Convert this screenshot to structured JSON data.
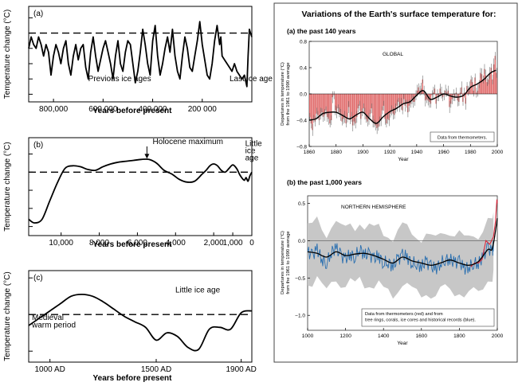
{
  "figure": {
    "left_panels": {
      "y_label": "Temperature change (°C)",
      "x_label": "Years before present"
    },
    "right": {
      "title": "Variations of the Earth's surface temperature for:",
      "y_label_line1": "Departures in temperature (°C)",
      "y_label_line2": "from the 1961 to 1990 average",
      "x_label": "Year"
    }
  },
  "chart_data": [
    {
      "id": "a",
      "type": "line",
      "panel_label": "(a)",
      "x_label": "Years before present",
      "y_label": "Temperature change (°C)",
      "x_axis": "reversed",
      "x_range": [
        900000,
        0
      ],
      "x_ticks": [
        {
          "v": 800000,
          "label": "800,000"
        },
        {
          "v": 600000,
          "label": "600,000"
        },
        {
          "v": 400000,
          "label": "400 000"
        },
        {
          "v": 200000,
          "label": "200 000"
        }
      ],
      "y_range": [
        -9,
        3.5
      ],
      "y_tick_marks": [
        -8,
        -6,
        -4,
        -2,
        0,
        2
      ],
      "reference_line": 0,
      "annotations": [
        {
          "text": "Previous ice ages",
          "x": 660000,
          "y": -6.3
        },
        {
          "text": "Last ice age",
          "x": 90000,
          "y": -6.3
        }
      ],
      "x": [
        900000,
        890000,
        880000,
        870000,
        860000,
        850000,
        840000,
        830000,
        820000,
        810000,
        800000,
        790000,
        780000,
        770000,
        760000,
        750000,
        740000,
        730000,
        720000,
        710000,
        700000,
        690000,
        680000,
        670000,
        660000,
        650000,
        640000,
        630000,
        620000,
        610000,
        600000,
        590000,
        580000,
        570000,
        560000,
        550000,
        540000,
        530000,
        520000,
        510000,
        500000,
        490000,
        480000,
        470000,
        460000,
        450000,
        440000,
        430000,
        420000,
        410000,
        400000,
        390000,
        380000,
        370000,
        360000,
        350000,
        340000,
        330000,
        320000,
        310000,
        300000,
        290000,
        280000,
        270000,
        260000,
        250000,
        240000,
        230000,
        220000,
        210000,
        200000,
        190000,
        180000,
        170000,
        160000,
        150000,
        140000,
        130000,
        125000,
        120000,
        110000,
        100000,
        90000,
        80000,
        70000,
        60000,
        50000,
        40000,
        30000,
        20000,
        15000,
        10000,
        5000,
        0
      ],
      "y": [
        -2,
        -0.5,
        -1.5,
        -2,
        -0.5,
        -1.5,
        -3,
        -1.5,
        -2.5,
        -5.5,
        -3,
        -1.5,
        -2.5,
        -4,
        -2,
        -1,
        -4,
        -5.5,
        -3,
        -1.5,
        -3.5,
        -2,
        -1.5,
        -4.5,
        -6,
        -2.5,
        -0.5,
        -3,
        -5,
        -3.5,
        -2,
        -1,
        -2.5,
        -4,
        -6,
        -3,
        -1,
        -4,
        -5,
        -2.5,
        -1,
        -1.5,
        -4,
        -6.5,
        -5,
        -2.5,
        0.5,
        -1.5,
        -4,
        -5.5,
        -1,
        1,
        -3,
        -5.5,
        -4,
        -2,
        -0.5,
        -2.5,
        0.5,
        -3,
        -5,
        -6,
        -3,
        -0.5,
        -2,
        -4.5,
        -5,
        -3,
        -1,
        1.5,
        -1.5,
        -3.5,
        -5.5,
        -6,
        -4,
        -1,
        1,
        -1.5,
        -0.5,
        -3,
        -3.5,
        -4,
        -4.5,
        -5,
        -4,
        -5,
        -5.5,
        -6,
        -5.5,
        -7,
        -3,
        0.5,
        0,
        -0.5
      ]
    },
    {
      "id": "b",
      "type": "line",
      "panel_label": "(b)",
      "x_label": "Years before present",
      "y_label": "Temperature change (°C)",
      "x_axis": "reversed",
      "x_range": [
        11700,
        0
      ],
      "x_ticks": [
        {
          "v": 10000,
          "label": "10,000"
        },
        {
          "v": 8000,
          "label": "8,000"
        },
        {
          "v": 6000,
          "label": "6,000"
        },
        {
          "v": 4000,
          "label": "4,000"
        },
        {
          "v": 2000,
          "label": "2,000"
        },
        {
          "v": 1000,
          "label": "1,000"
        },
        {
          "v": 0,
          "label": "0"
        }
      ],
      "y_range": [
        -3.5,
        1.9
      ],
      "y_tick_marks": [
        -3,
        -2,
        -1,
        0,
        1
      ],
      "reference_line": 0,
      "annotations": [
        {
          "text": "Holocene maximum",
          "x": 5200,
          "y": 1.55,
          "arrow_to_x": 5500,
          "arrow_to_y": 0.7
        },
        {
          "text": "Little",
          "x": 350,
          "y": 1.45
        },
        {
          "text": "ice",
          "x": 350,
          "y": 1.05
        },
        {
          "text": "age",
          "x": 350,
          "y": 0.65
        }
      ],
      "x": [
        11700,
        11400,
        11000,
        10600,
        10200,
        9800,
        9400,
        9000,
        8600,
        8200,
        7800,
        7400,
        7000,
        6600,
        6200,
        5800,
        5400,
        5000,
        4600,
        4200,
        3800,
        3400,
        3000,
        2600,
        2400,
        2200,
        2000,
        1800,
        1600,
        1400,
        1200,
        1000,
        800,
        600,
        400,
        300,
        200,
        100,
        0
      ],
      "y": [
        -2.6,
        -2.8,
        -2.6,
        -1.6,
        -0.6,
        0.2,
        0.35,
        0.3,
        0.15,
        0.1,
        0.3,
        0.45,
        0.55,
        0.6,
        0.65,
        0.7,
        0.7,
        0.5,
        0.1,
        -0.1,
        -0.4,
        -0.55,
        -0.5,
        -0.1,
        0.1,
        0.35,
        0.45,
        0.35,
        0.1,
        0.0,
        0.2,
        0.4,
        0.2,
        -0.2,
        -0.45,
        -0.3,
        -0.5,
        -0.2,
        0.0
      ]
    },
    {
      "id": "c",
      "type": "line",
      "panel_label": "(c)",
      "x_label": "Years before present",
      "y_label": "Temperature change (°C)",
      "x_range": [
        900,
        1950
      ],
      "x_ticks": [
        {
          "v": 1000,
          "label": "1000 AD"
        },
        {
          "v": 1500,
          "label": "1500 AD"
        },
        {
          "v": 1900,
          "label": "1900 AD"
        }
      ],
      "y_range": [
        -1.3,
        1.2
      ],
      "y_tick_marks": [
        -1,
        0,
        1
      ],
      "reference_line": 0,
      "annotations": [
        {
          "text": "Little ice age",
          "x": 1590,
          "y": 0.6
        },
        {
          "text": "Medieval",
          "x": 915,
          "y": -0.15
        },
        {
          "text": "warm period",
          "x": 915,
          "y": -0.35
        }
      ],
      "x": [
        900,
        950,
        1000,
        1050,
        1100,
        1150,
        1200,
        1250,
        1300,
        1350,
        1400,
        1450,
        1500,
        1550,
        1600,
        1650,
        1700,
        1750,
        1800,
        1850,
        1900,
        1950
      ],
      "y": [
        -0.3,
        -0.1,
        0.1,
        0.3,
        0.5,
        0.55,
        0.5,
        0.35,
        0.15,
        -0.05,
        -0.2,
        -0.35,
        -0.7,
        -0.5,
        -0.6,
        -0.9,
        -0.95,
        -0.4,
        -0.35,
        -0.4,
        0.05,
        0.1
      ]
    },
    {
      "id": "global-140",
      "type": "bar",
      "panel_label": "(a) the past 140 years",
      "inset_label": "GLOBAL",
      "legend_note": "Data from thermometers.",
      "x_label": "Year",
      "y_label": "Departures in temperature (°C) from the 1961 to 1990 average",
      "x_range": [
        1860,
        2000
      ],
      "x_ticks": [
        1860,
        1880,
        1900,
        1920,
        1940,
        1960,
        1980,
        2000
      ],
      "y_range": [
        -0.8,
        0.8
      ],
      "y_ticks": [
        -0.8,
        -0.4,
        0.0,
        0.4,
        0.8
      ],
      "y_tick_labels": [
        "−0.8",
        "−0.4",
        "0.0",
        "0.4",
        "0.8"
      ],
      "colors": {
        "bars": "#e06a6a",
        "smooth": "#000000",
        "error_bars": "#555555"
      },
      "series": [
        {
          "values": [
            -0.35,
            -0.45,
            -0.55,
            -0.38,
            -0.42,
            -0.3,
            -0.32,
            -0.4,
            -0.3,
            -0.28,
            -0.35,
            -0.32,
            -0.25,
            -0.35,
            -0.38,
            -0.45,
            -0.4,
            -0.05,
            -0.02,
            -0.25,
            -0.28,
            -0.22,
            -0.28,
            -0.32,
            -0.42,
            -0.38,
            -0.35,
            -0.45,
            -0.36,
            -0.2,
            -0.4,
            -0.35,
            -0.48,
            -0.42,
            -0.45,
            -0.35,
            -0.22,
            -0.18,
            -0.38,
            -0.28,
            -0.22,
            -0.3,
            -0.38,
            -0.42,
            -0.38,
            -0.3,
            -0.22,
            -0.42,
            -0.45,
            -0.48,
            -0.52,
            -0.5,
            -0.42,
            -0.4,
            -0.25,
            -0.18,
            -0.38,
            -0.45,
            -0.38,
            -0.4,
            -0.3,
            -0.25,
            -0.3,
            -0.32,
            -0.22,
            -0.18,
            -0.12,
            -0.2,
            -0.15,
            -0.25,
            -0.08,
            -0.18,
            -0.15,
            -0.28,
            -0.18,
            -0.15,
            -0.08,
            -0.12,
            -0.12,
            -0.02,
            0.05,
            0.1,
            0.05,
            0.08,
            0.22,
            0.05,
            -0.1,
            -0.08,
            -0.1,
            -0.12,
            -0.15,
            -0.02,
            0.02,
            0.08,
            -0.15,
            -0.02,
            -0.05,
            0.08,
            0.02,
            -0.05,
            -0.02,
            0.05,
            0.02,
            0.05,
            -0.2,
            -0.15,
            -0.08,
            -0.02,
            -0.05,
            0.02,
            -0.1,
            -0.12,
            0.02,
            0.1,
            -0.12,
            0.02,
            -0.15,
            0.12,
            0.05,
            0.1,
            0.22,
            0.18,
            0.05,
            0.25,
            0.02,
            0.05,
            0.15,
            0.32,
            0.3,
            0.22,
            0.38,
            0.28,
            0.18,
            0.22,
            0.32,
            0.4,
            0.22,
            0.45,
            0.58,
            0.32
          ],
          "x_start": 1860
        }
      ],
      "smoothed": {
        "x": [
          1860,
          1865,
          1870,
          1875,
          1880,
          1885,
          1890,
          1895,
          1900,
          1905,
          1910,
          1915,
          1920,
          1925,
          1930,
          1935,
          1940,
          1945,
          1950,
          1955,
          1960,
          1965,
          1970,
          1975,
          1980,
          1985,
          1990,
          1995,
          1999
        ],
        "y": [
          -0.4,
          -0.38,
          -0.3,
          -0.28,
          -0.28,
          -0.33,
          -0.38,
          -0.32,
          -0.28,
          -0.38,
          -0.45,
          -0.35,
          -0.27,
          -0.22,
          -0.15,
          -0.12,
          -0.02,
          0.05,
          -0.08,
          -0.05,
          0.0,
          -0.03,
          -0.05,
          -0.02,
          0.1,
          0.15,
          0.22,
          0.32,
          0.36
        ]
      }
    },
    {
      "id": "nh-1000",
      "type": "line",
      "panel_label": "(b) the past 1,000 years",
      "inset_label": "NORTHERN HEMISPHERE",
      "legend_note": "Data from thermometers (red) and from tree rings, corals, ice cores and historical records (blue).",
      "x_label": "Year",
      "y_label": "Departures in temperature (°C) from the 1961 to 1990 average",
      "x_range": [
        1000,
        2000
      ],
      "x_ticks": [
        1000,
        1200,
        1400,
        1600,
        1800,
        2000
      ],
      "y_range": [
        -1.2,
        0.6
      ],
      "y_ticks": [
        -1.0,
        -0.5,
        0.0,
        0.5
      ],
      "y_tick_labels": [
        "−1.0",
        "−0.5",
        "0.0",
        "0.5"
      ],
      "colors": {
        "proxy": "#2a6fb0",
        "instrumental": "#d9263a",
        "smooth": "#000000",
        "uncertainty": "#c7c7c7"
      },
      "uncertainty_half_width": 0.45,
      "series": [
        {
          "name": "proxy",
          "x": [
            1000,
            1025,
            1050,
            1075,
            1100,
            1125,
            1150,
            1175,
            1200,
            1225,
            1250,
            1275,
            1300,
            1325,
            1350,
            1375,
            1400,
            1425,
            1450,
            1475,
            1500,
            1525,
            1550,
            1575,
            1600,
            1625,
            1650,
            1675,
            1700,
            1725,
            1750,
            1775,
            1800,
            1825,
            1850,
            1875,
            1900,
            1925,
            1950,
            1975,
            1980
          ],
          "y": [
            -0.15,
            -0.2,
            -0.12,
            -0.25,
            -0.3,
            -0.15,
            -0.1,
            -0.2,
            -0.25,
            -0.18,
            -0.22,
            -0.1,
            -0.2,
            -0.18,
            -0.25,
            -0.2,
            -0.3,
            -0.28,
            -0.35,
            -0.25,
            -0.2,
            -0.22,
            -0.3,
            -0.3,
            -0.35,
            -0.28,
            -0.35,
            -0.38,
            -0.3,
            -0.25,
            -0.25,
            -0.3,
            -0.28,
            -0.38,
            -0.35,
            -0.3,
            -0.3,
            -0.22,
            -0.1,
            -0.15,
            -0.05
          ]
        },
        {
          "name": "instrumental",
          "x": [
            1860,
            1880,
            1900,
            1920,
            1940,
            1960,
            1980,
            1990,
            1998,
            2000
          ],
          "y": [
            -0.35,
            -0.3,
            -0.3,
            -0.25,
            0.0,
            -0.05,
            0.05,
            0.25,
            0.55,
            0.5
          ]
        }
      ],
      "smoothed": {
        "x": [
          1000,
          1050,
          1100,
          1150,
          1200,
          1250,
          1300,
          1350,
          1400,
          1450,
          1500,
          1550,
          1600,
          1650,
          1700,
          1750,
          1800,
          1850,
          1900,
          1950,
          1975,
          2000
        ],
        "y": [
          -0.15,
          -0.17,
          -0.22,
          -0.15,
          -0.2,
          -0.18,
          -0.17,
          -0.2,
          -0.25,
          -0.3,
          -0.22,
          -0.27,
          -0.3,
          -0.33,
          -0.3,
          -0.26,
          -0.3,
          -0.33,
          -0.28,
          -0.12,
          -0.1,
          0.3
        ]
      }
    }
  ]
}
